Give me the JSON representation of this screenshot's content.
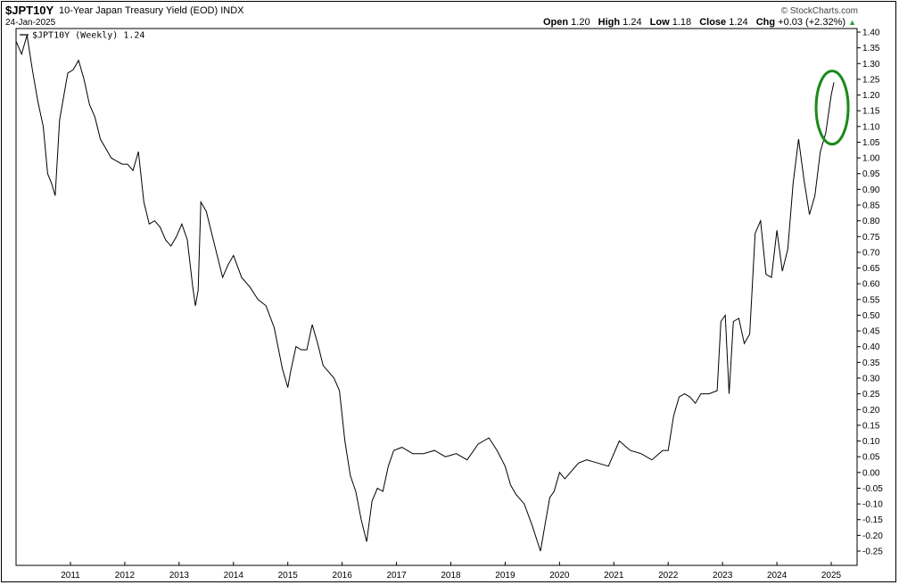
{
  "header": {
    "symbol": "$JPT10Y",
    "title": "10-Year Japan Treasury Yield (EOD)",
    "exchange": "INDX",
    "date": "24-Jan-2025",
    "brand": "© StockCharts.com",
    "open_label": "Open",
    "open": "1.20",
    "high_label": "High",
    "high": "1.24",
    "low_label": "Low",
    "low": "1.18",
    "close_label": "Close",
    "close": "1.24",
    "chg_label": "Chg",
    "chg": "+0.03 (+2.32%)",
    "chg_arrow": "▲"
  },
  "legend": {
    "label": "$JPT10Y (Weekly) 1.24"
  },
  "colors": {
    "line": "#000000",
    "highlight_circle": "#1a8a1a",
    "up_arrow": "#2a9d3a"
  },
  "chart_data": {
    "type": "line",
    "title": "10-Year Japan Treasury Yield (EOD)",
    "xlabel": "",
    "ylabel": "",
    "grid": false,
    "legend_position": "top-left",
    "ylim": [
      -0.3,
      1.42
    ],
    "y_ticks": [
      1.4,
      1.35,
      1.3,
      1.25,
      1.2,
      1.15,
      1.1,
      1.05,
      1.0,
      0.95,
      0.9,
      0.85,
      0.8,
      0.75,
      0.7,
      0.65,
      0.6,
      0.55,
      0.5,
      0.45,
      0.4,
      0.35,
      0.3,
      0.25,
      0.2,
      0.15,
      0.1,
      0.05,
      0.0,
      -0.05,
      -0.1,
      -0.15,
      -0.2,
      -0.25
    ],
    "y_tick_labels": [
      "1.40",
      "1.35",
      "1.30",
      "1.25",
      "1.20",
      "1.15",
      "1.10",
      "1.05",
      "1.00",
      "0.95",
      "0.90",
      "0.85",
      "0.80",
      "0.75",
      "0.70",
      "0.65",
      "0.60",
      "0.55",
      "0.50",
      "0.45",
      "0.40",
      "0.35",
      "0.30",
      "0.25",
      "0.20",
      "0.15",
      "0.10",
      "0.05",
      "0.00",
      "-0.05",
      "-0.10",
      "-0.15",
      "-0.20",
      "-0.25"
    ],
    "x_tick_labels": [
      "2011",
      "2012",
      "2013",
      "2014",
      "2015",
      "2016",
      "2017",
      "2018",
      "2019",
      "2020",
      "2021",
      "2022",
      "2023",
      "2024",
      "2025"
    ],
    "x_tick_values": [
      2011.0,
      2012.0,
      2013.0,
      2014.0,
      2015.0,
      2016.0,
      2017.0,
      2018.0,
      2019.0,
      2020.0,
      2021.0,
      2022.0,
      2023.0,
      2024.0,
      2025.0
    ],
    "xlim": [
      2010.0,
      2025.45
    ],
    "series": [
      {
        "name": "$JPT10Y (Weekly)",
        "x": [
          2010.0,
          2010.1,
          2010.2,
          2010.3,
          2010.4,
          2010.5,
          2010.58,
          2010.65,
          2010.72,
          2010.8,
          2010.88,
          2010.95,
          2011.05,
          2011.15,
          2011.25,
          2011.35,
          2011.45,
          2011.55,
          2011.65,
          2011.75,
          2011.85,
          2011.95,
          2012.05,
          2012.15,
          2012.25,
          2012.35,
          2012.45,
          2012.55,
          2012.65,
          2012.75,
          2012.85,
          2012.95,
          2013.05,
          2013.15,
          2013.25,
          2013.3,
          2013.35,
          2013.4,
          2013.5,
          2013.6,
          2013.7,
          2013.8,
          2013.9,
          2014.0,
          2014.15,
          2014.3,
          2014.45,
          2014.6,
          2014.75,
          2014.9,
          2015.0,
          2015.05,
          2015.15,
          2015.25,
          2015.35,
          2015.45,
          2015.55,
          2015.65,
          2015.75,
          2015.85,
          2015.95,
          2016.05,
          2016.15,
          2016.25,
          2016.35,
          2016.45,
          2016.55,
          2016.65,
          2016.75,
          2016.85,
          2016.95,
          2017.1,
          2017.3,
          2017.5,
          2017.7,
          2017.9,
          2018.1,
          2018.3,
          2018.5,
          2018.7,
          2018.85,
          2019.0,
          2019.1,
          2019.2,
          2019.35,
          2019.5,
          2019.65,
          2019.75,
          2019.82,
          2019.9,
          2020.0,
          2020.1,
          2020.2,
          2020.35,
          2020.5,
          2020.7,
          2020.9,
          2021.1,
          2021.3,
          2021.5,
          2021.7,
          2021.9,
          2022.0,
          2022.1,
          2022.2,
          2022.3,
          2022.4,
          2022.5,
          2022.6,
          2022.75,
          2022.9,
          2022.97,
          2023.05,
          2023.12,
          2023.2,
          2023.3,
          2023.4,
          2023.5,
          2023.6,
          2023.7,
          2023.8,
          2023.9,
          2024.0,
          2024.1,
          2024.2,
          2024.3,
          2024.4,
          2024.5,
          2024.6,
          2024.7,
          2024.8,
          2024.9,
          2025.0,
          2025.05
        ],
        "values": [
          1.37,
          1.33,
          1.39,
          1.28,
          1.18,
          1.1,
          0.95,
          0.92,
          0.88,
          1.12,
          1.2,
          1.27,
          1.28,
          1.31,
          1.25,
          1.17,
          1.13,
          1.06,
          1.03,
          1.0,
          0.99,
          0.98,
          0.98,
          0.96,
          1.02,
          0.86,
          0.79,
          0.8,
          0.78,
          0.74,
          0.72,
          0.75,
          0.79,
          0.74,
          0.59,
          0.53,
          0.58,
          0.86,
          0.83,
          0.76,
          0.69,
          0.62,
          0.66,
          0.69,
          0.62,
          0.59,
          0.55,
          0.53,
          0.46,
          0.33,
          0.27,
          0.32,
          0.4,
          0.39,
          0.39,
          0.47,
          0.41,
          0.34,
          0.32,
          0.3,
          0.26,
          0.1,
          -0.01,
          -0.06,
          -0.15,
          -0.22,
          -0.09,
          -0.05,
          -0.06,
          0.02,
          0.07,
          0.08,
          0.06,
          0.06,
          0.07,
          0.05,
          0.06,
          0.04,
          0.09,
          0.11,
          0.07,
          0.02,
          -0.04,
          -0.07,
          -0.1,
          -0.17,
          -0.25,
          -0.15,
          -0.08,
          -0.06,
          -0.0,
          -0.02,
          0.0,
          0.03,
          0.04,
          0.03,
          0.02,
          0.1,
          0.07,
          0.06,
          0.04,
          0.07,
          0.07,
          0.18,
          0.24,
          0.25,
          0.24,
          0.22,
          0.25,
          0.25,
          0.26,
          0.48,
          0.5,
          0.25,
          0.48,
          0.49,
          0.41,
          0.44,
          0.76,
          0.8,
          0.63,
          0.62,
          0.77,
          0.64,
          0.71,
          0.92,
          1.06,
          0.93,
          0.82,
          0.88,
          1.02,
          1.08,
          1.2,
          1.24
        ]
      }
    ]
  }
}
